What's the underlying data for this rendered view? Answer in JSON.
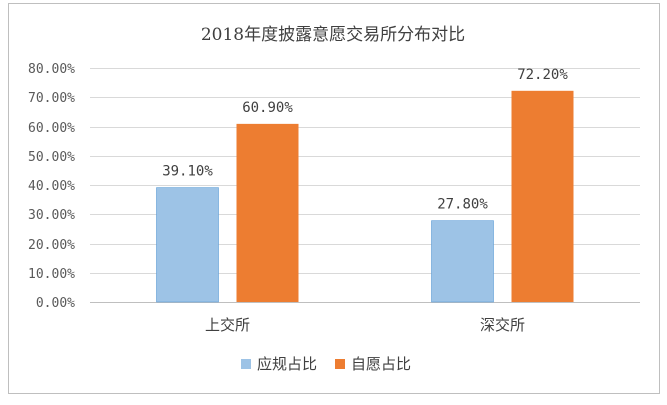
{
  "chart_data": {
    "type": "bar",
    "title": "2018年度披露意愿交易所分布对比",
    "categories": [
      "上交所",
      "深交所"
    ],
    "series": [
      {
        "name": "应规占比",
        "values": [
          39.1,
          27.8
        ],
        "labels": [
          "39.10%",
          "27.80%"
        ],
        "color": "#9dc3e6"
      },
      {
        "name": "自愿占比",
        "values": [
          60.9,
          72.2
        ],
        "labels": [
          "60.90%",
          "72.20%"
        ],
        "color": "#ed7d31"
      }
    ],
    "ylim": [
      0,
      80
    ],
    "yticks": [
      "0.00%",
      "10.00%",
      "20.00%",
      "30.00%",
      "40.00%",
      "50.00%",
      "60.00%",
      "70.00%",
      "80.00%"
    ],
    "ytick_values": [
      0,
      10,
      20,
      30,
      40,
      50,
      60,
      70,
      80
    ],
    "xlabel": "",
    "ylabel": "",
    "grid": true,
    "legend_position": "bottom"
  }
}
